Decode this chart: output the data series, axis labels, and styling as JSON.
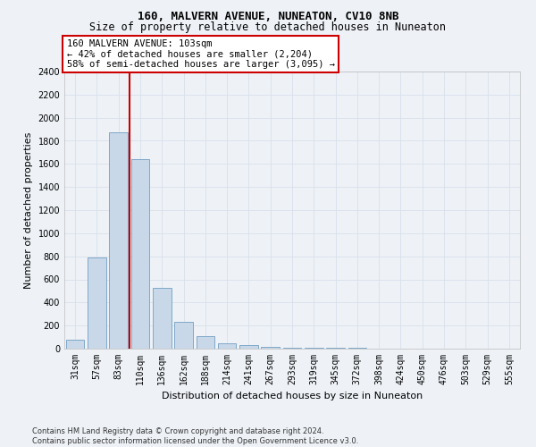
{
  "title1": "160, MALVERN AVENUE, NUNEATON, CV10 8NB",
  "title2": "Size of property relative to detached houses in Nuneaton",
  "xlabel": "Distribution of detached houses by size in Nuneaton",
  "ylabel": "Number of detached properties",
  "categories": [
    "31sqm",
    "57sqm",
    "83sqm",
    "110sqm",
    "136sqm",
    "162sqm",
    "188sqm",
    "214sqm",
    "241sqm",
    "267sqm",
    "293sqm",
    "319sqm",
    "345sqm",
    "372sqm",
    "398sqm",
    "424sqm",
    "450sqm",
    "476sqm",
    "503sqm",
    "529sqm",
    "555sqm"
  ],
  "values": [
    75,
    790,
    1870,
    1640,
    530,
    235,
    105,
    50,
    30,
    15,
    5,
    5,
    5,
    5,
    0,
    0,
    0,
    0,
    0,
    0,
    0
  ],
  "bar_color": "#c8d8e8",
  "bar_edge_color": "#7fa8c8",
  "vline_x": 2.5,
  "vline_color": "#cc0000",
  "annotation_line1": "160 MALVERN AVENUE: 103sqm",
  "annotation_line2": "← 42% of detached houses are smaller (2,204)",
  "annotation_line3": "58% of semi-detached houses are larger (3,095) →",
  "annotation_box_color": "#ffffff",
  "annotation_box_edge": "#cc0000",
  "ylim_max": 2400,
  "yticks": [
    0,
    200,
    400,
    600,
    800,
    1000,
    1200,
    1400,
    1600,
    1800,
    2000,
    2200,
    2400
  ],
  "footnote": "Contains HM Land Registry data © Crown copyright and database right 2024.\nContains public sector information licensed under the Open Government Licence v3.0.",
  "bg_color": "#eef2f7",
  "grid_color": "#d8e0ea",
  "title1_fontsize": 9,
  "title2_fontsize": 8.5,
  "xlabel_fontsize": 8,
  "ylabel_fontsize": 8,
  "tick_fontsize": 7,
  "annot_fontsize": 7.5,
  "footnote_fontsize": 6
}
